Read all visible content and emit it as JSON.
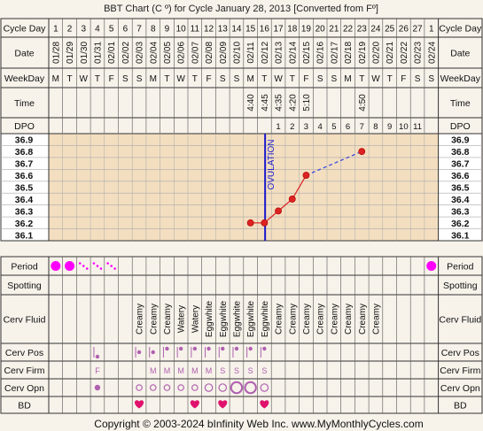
{
  "chart_data": {
    "type": "line",
    "title": "BBT Chart (C º) for Cycle January 28, 2013  [Converted from Fº]",
    "footer": "Copyright © 2003-2024 bInfinity Web Inc.     www.MyMonthlyCycles.com",
    "row_labels": {
      "cycle_day": "Cycle Day",
      "date": "Date",
      "weekday": "WeekDay",
      "time": "Time",
      "dpo": "DPO",
      "period": "Period",
      "spotting": "Spotting",
      "cerv_fluid": "Cerv Fluid",
      "cerv_pos": "Cerv Pos",
      "cerv_firm": "Cerv Firm",
      "cerv_opn": "Cerv Opn",
      "bd": "BD"
    },
    "cycle_days": [
      "1",
      "2",
      "3",
      "4",
      "5",
      "6",
      "7",
      "8",
      "9",
      "10",
      "11",
      "12",
      "13",
      "14",
      "15",
      "16",
      "17",
      "18",
      "19",
      "20",
      "21",
      "22",
      "23",
      "24",
      "25",
      "26",
      "27",
      "1"
    ],
    "dates": [
      "01/28",
      "01/29",
      "01/30",
      "01/31",
      "02/01",
      "02/02",
      "02/03",
      "02/04",
      "02/05",
      "02/06",
      "02/07",
      "02/08",
      "02/09",
      "02/10",
      "02/11",
      "02/12",
      "02/13",
      "02/14",
      "02/15",
      "02/16",
      "02/17",
      "02/18",
      "02/19",
      "02/20",
      "02/21",
      "02/22",
      "02/23",
      "02/24"
    ],
    "weekdays": [
      "M",
      "T",
      "W",
      "T",
      "F",
      "S",
      "S",
      "M",
      "T",
      "W",
      "T",
      "F",
      "S",
      "S",
      "M",
      "T",
      "W",
      "T",
      "F",
      "S",
      "S",
      "M",
      "T",
      "W",
      "T",
      "F",
      "S",
      "S"
    ],
    "times": [
      "",
      "",
      "",
      "",
      "",
      "",
      "",
      "",
      "",
      "",
      "",
      "",
      "",
      "",
      "4:40",
      "4:45",
      "4:35",
      "4:20",
      "5:10",
      "",
      "",
      "",
      "4:50",
      "",
      "",
      "",
      "",
      ""
    ],
    "dpo": [
      "",
      "",
      "",
      "",
      "",
      "",
      "",
      "",
      "",
      "",
      "",
      "",
      "",
      "",
      "",
      "",
      "1",
      "2",
      "3",
      "4",
      "5",
      "6",
      "7",
      "8",
      "9",
      "10",
      "11",
      ""
    ],
    "temp_ticks": [
      "36.9",
      "36.8",
      "36.7",
      "36.6",
      "36.5",
      "36.4",
      "36.3",
      "36.2",
      "36.1"
    ],
    "ylim": [
      36.05,
      36.95
    ],
    "ovulation_label": "OVULATION",
    "ovulation_after_day_index": 15,
    "series": [
      {
        "points": [
          {
            "day_index": 14,
            "temp": 36.2
          },
          {
            "day_index": 15,
            "temp": 36.2
          },
          {
            "day_index": 16,
            "temp": 36.3
          },
          {
            "day_index": 17,
            "temp": 36.4
          },
          {
            "day_index": 18,
            "temp": 36.6
          },
          {
            "day_index": 22,
            "temp": 36.8
          }
        ]
      }
    ],
    "period": [
      "heavy",
      "heavy",
      "light",
      "light",
      "light",
      "",
      "",
      "",
      "",
      "",
      "",
      "",
      "",
      "",
      "",
      "",
      "",
      "",
      "",
      "",
      "",
      "",
      "",
      "",
      "",
      "",
      "",
      "heavy"
    ],
    "cerv_fluid": [
      "",
      "",
      "",
      "",
      "",
      "",
      "Creamy",
      "Creamy",
      "Creamy",
      "Watery",
      "Watery",
      "Eggwhite",
      "Eggwhite",
      "Eggwhite",
      "Eggwhite",
      "Eggwhite",
      "Creamy",
      "Creamy",
      "Creamy",
      "Creamy",
      "Creamy",
      "Creamy",
      "Creamy",
      "Creamy",
      "",
      "",
      "",
      ""
    ],
    "cerv_pos": [
      "",
      "",
      "",
      "low",
      "",
      "",
      "mid",
      "mid",
      "high",
      "high",
      "high",
      "high",
      "high",
      "high",
      "high",
      "high",
      "",
      "",
      "",
      "",
      "",
      "",
      "",
      "",
      "",
      "",
      "",
      ""
    ],
    "cerv_firm": [
      "",
      "",
      "",
      "F",
      "",
      "",
      "",
      "M",
      "M",
      "M",
      "M",
      "M",
      "S",
      "S",
      "S",
      "S",
      "",
      "",
      "",
      "",
      "",
      "",
      "",
      "",
      "",
      "",
      "",
      ""
    ],
    "cerv_opn": [
      "",
      "",
      "",
      "closed",
      "",
      "",
      "small",
      "small",
      "small",
      "small",
      "small",
      "medium",
      "medium",
      "large",
      "large",
      "medium",
      "",
      "",
      "",
      "",
      "",
      "",
      "",
      "",
      "",
      "",
      "",
      ""
    ],
    "bd": [
      "",
      "",
      "",
      "",
      "",
      "",
      "yes",
      "",
      "",
      "",
      "yes",
      "",
      "yes",
      "",
      "",
      "yes",
      "",
      "",
      "",
      "",
      "",
      "",
      "",
      "",
      "",
      "",
      "",
      ""
    ],
    "colors": {
      "background": "#f7f2ea",
      "grid_shade": "#f3dec0",
      "ovulation_line": "#1a1acc",
      "temp_line": "#dd2222",
      "projection_line": "#3344dd",
      "period": "#ff00ff",
      "cervix": "#b060b0",
      "bd_heart": "#e0116d"
    }
  }
}
